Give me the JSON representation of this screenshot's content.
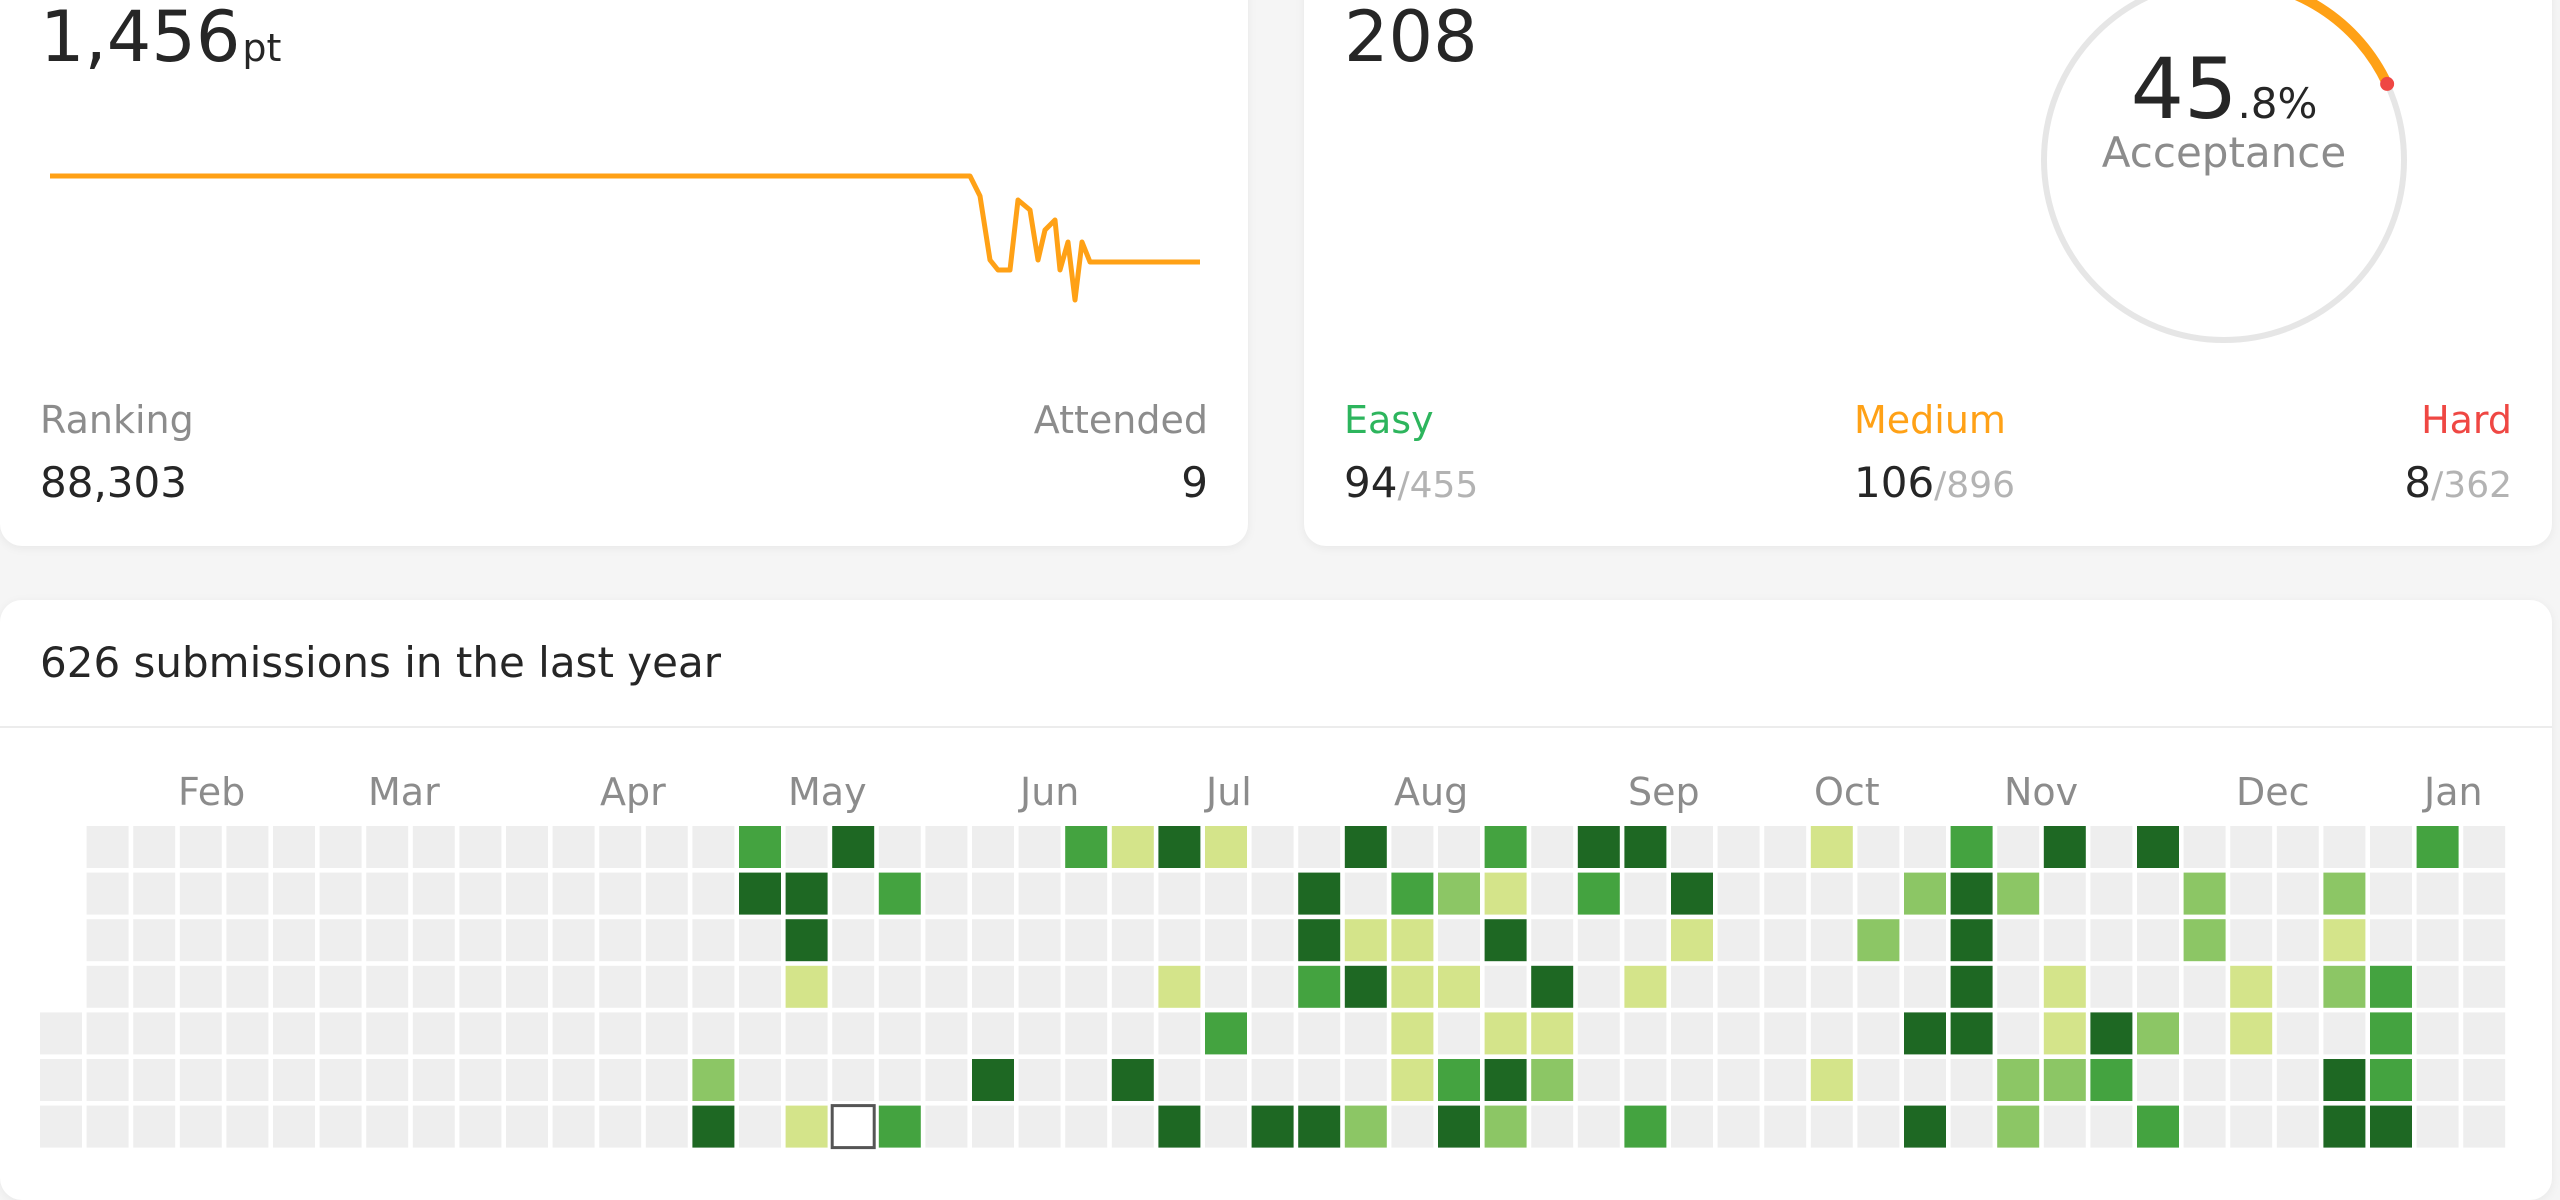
{
  "contest": {
    "rating": "1,456",
    "rating_unit": "pt",
    "ranking_label": "Ranking",
    "ranking_value": "88,303",
    "attended_label": "Attended",
    "attended_value": "9",
    "series_color": "#ffa116"
  },
  "solved": {
    "total": "208",
    "acceptance_whole": "45",
    "acceptance_fraction": ".8%",
    "acceptance_label": "Acceptance",
    "acceptance_rate": 45.8,
    "easy_label": "Easy",
    "easy_solved": "94",
    "easy_total": "/455",
    "medium_label": "Medium",
    "medium_solved": "106",
    "medium_total": "/896",
    "hard_label": "Hard",
    "hard_solved": "8",
    "hard_total": "/362",
    "easy_color": "#2db55d",
    "medium_color": "#ffa116",
    "hard_color": "#ef4743"
  },
  "heatmap": {
    "title": "626 submissions in the last year",
    "months": [
      "Feb",
      "Mar",
      "Apr",
      "May",
      "Jun",
      "Jul",
      "Aug",
      "Sep",
      "Oct",
      "Nov",
      "Dec",
      "Jan"
    ],
    "palette": [
      "#eeeeee",
      "#d4e48a",
      "#8cc665",
      "#44a340",
      "#1e6823"
    ]
  }
}
